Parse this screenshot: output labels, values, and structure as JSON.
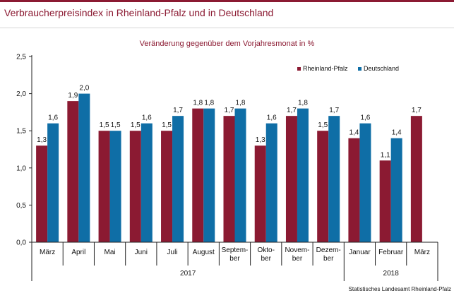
{
  "title": "Verbraucherpreisindex in Rheinland-Pfalz und in Deutschland",
  "subtitle": "Veränderung gegenüber dem Vorjahresmonat in %",
  "source": "Statistisches Landesamt Rheinland-Pfalz",
  "colors": {
    "rlp": "#8b1a32",
    "de": "#0f6ea6",
    "accent": "#8b1a32"
  },
  "chart_data": {
    "type": "bar",
    "categories": [
      [
        "März"
      ],
      [
        "April"
      ],
      [
        "Mai"
      ],
      [
        "Juni"
      ],
      [
        "Juli"
      ],
      [
        "August"
      ],
      [
        "Septem-",
        "ber"
      ],
      [
        "Okto-",
        "ber"
      ],
      [
        "Novem-",
        "ber"
      ],
      [
        "Dezem-",
        "ber"
      ],
      [
        "Januar"
      ],
      [
        "Februar"
      ],
      [
        "März"
      ]
    ],
    "series": [
      {
        "name": "Rheinland-Pfalz",
        "values": [
          1.3,
          1.9,
          1.5,
          1.5,
          1.5,
          1.8,
          1.7,
          1.3,
          1.7,
          1.5,
          1.4,
          1.1,
          1.7
        ]
      },
      {
        "name": "Deutschland",
        "values": [
          1.6,
          2.0,
          1.5,
          1.6,
          1.7,
          1.8,
          1.8,
          1.6,
          1.8,
          1.7,
          1.6,
          1.4,
          null
        ]
      }
    ],
    "value_labels": {
      "Rheinland-Pfalz": [
        "1,3",
        "1,9",
        "1,5",
        "1,5",
        "1,5",
        "1,8",
        "1,7",
        "1,3",
        "1,7",
        "1,5",
        "1,4",
        "1,1",
        "1,7"
      ],
      "Deutschland": [
        "1,6",
        "2,0",
        "1,5",
        "1,6",
        "1,7",
        "1,8",
        "1,8",
        "1,6",
        "1,8",
        "1,7",
        "1,6",
        "1,4",
        null
      ]
    },
    "yticks": [
      "0,0",
      "0,5",
      "1,0",
      "1,5",
      "2,0",
      "2,5"
    ],
    "ylim": [
      0,
      2.5
    ],
    "years": [
      {
        "label": "2017",
        "start": 0,
        "end": 9
      },
      {
        "label": "2018",
        "start": 10,
        "end": 12
      }
    ],
    "grid": false,
    "legend": "top-right"
  }
}
